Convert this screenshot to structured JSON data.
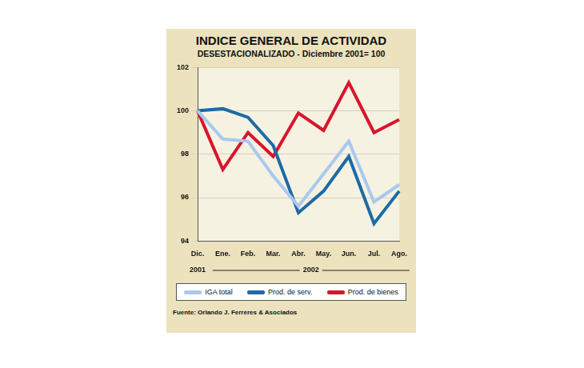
{
  "chart_data": {
    "type": "line",
    "title": "INDICE GENERAL DE ACTIVIDAD",
    "subtitle": "DESESTACIONALIZADO  - Diciembre 2001= 100",
    "source": "Fuente: Orlando J. Ferreres & Asociados",
    "categories": [
      "Dic.",
      "Ene.",
      "Feb.",
      "Mar.",
      "Abr.",
      "May.",
      "Jun.",
      "Jul.",
      "Ago."
    ],
    "year_groups": [
      {
        "label": "2001",
        "categories": [
          "Dic."
        ]
      },
      {
        "label": "2002",
        "categories": [
          "Ene.",
          "Feb.",
          "Mar.",
          "Abr.",
          "May.",
          "Jun.",
          "Jul.",
          "Ago."
        ]
      }
    ],
    "series": [
      {
        "name": "IGA total",
        "color": "#a9c9ee",
        "values": [
          100,
          98.7,
          98.6,
          97.0,
          95.6,
          97.1,
          98.6,
          95.8,
          96.6
        ]
      },
      {
        "name": "Prod. de serv.",
        "color": "#1d6aa5",
        "values": [
          100,
          100.1,
          99.7,
          98.4,
          95.3,
          96.3,
          97.9,
          94.8,
          96.3
        ]
      },
      {
        "name": "Prod. de bienes",
        "color": "#d9152d",
        "values": [
          100,
          97.3,
          99.0,
          97.9,
          99.9,
          99.1,
          101.3,
          99.0,
          99.6
        ]
      }
    ],
    "ylim": [
      94,
      102
    ],
    "yticks": [
      94,
      96,
      98,
      100,
      102
    ],
    "grid": true,
    "legend": "bottom"
  }
}
